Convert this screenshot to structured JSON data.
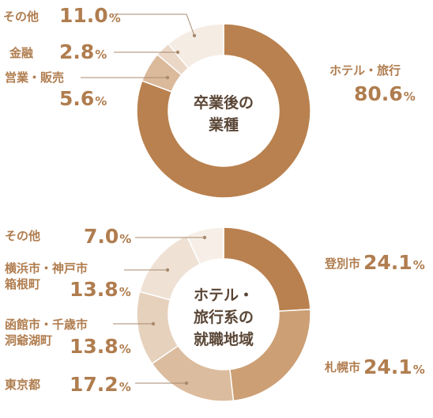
{
  "chart_data": [
    {
      "type": "pie",
      "title": "卒業後の業種",
      "percent_symbol": "%",
      "slices": [
        {
          "label": "ホテル・旅行",
          "value": 80.6,
          "value_text": "80.6",
          "color": "#b9814f"
        },
        {
          "label": "営業・販売",
          "value": 5.6,
          "value_text": "5.6",
          "color": "#dbb99b"
        },
        {
          "label": "金融",
          "value": 2.8,
          "value_text": "2.8",
          "color": "#ead7c6"
        },
        {
          "label": "その他",
          "value": 11.0,
          "value_text": "11.0",
          "color": "#f5ece4"
        }
      ]
    },
    {
      "type": "pie",
      "title": "ホテル・旅行系の就職地域",
      "percent_symbol": "%",
      "slices": [
        {
          "label": "登別市",
          "value": 24.1,
          "value_text": "24.1",
          "color": "#b9814f"
        },
        {
          "label": "札幌市",
          "value": 24.1,
          "value_text": "24.1",
          "color": "#cc9f75"
        },
        {
          "label": "東京都",
          "value": 17.2,
          "value_text": "17.2",
          "color": "#dcbc9e"
        },
        {
          "label": "函館市・千歳市洞爺湖町",
          "value": 13.8,
          "value_text": "13.8",
          "color": "#e6d1bd"
        },
        {
          "label": "横浜市・神戸市箱根町",
          "value": 13.8,
          "value_text": "13.8",
          "color": "#efe2d5"
        },
        {
          "label": "その他",
          "value": 7.0,
          "value_text": "7.0",
          "color": "#f7efe7"
        }
      ]
    }
  ]
}
